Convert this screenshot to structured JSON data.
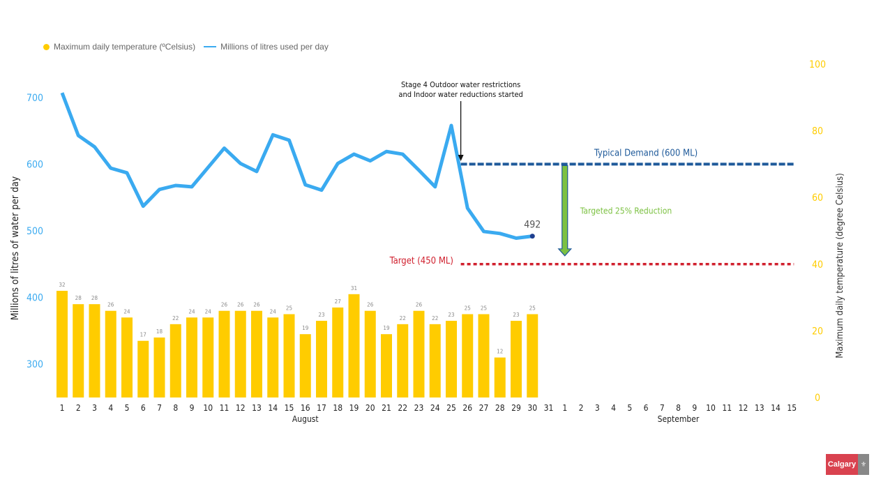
{
  "chart_data": {
    "type": "bar+line",
    "legend": [
      {
        "label": "Maximum daily temperature (ºCelsius)",
        "color": "#ffcc00",
        "marker": "dot"
      },
      {
        "label": "Millions of litres used per day",
        "color": "#3aaaf0",
        "marker": "line"
      }
    ],
    "legend_position": "top-left",
    "categories": [
      "1",
      "2",
      "3",
      "4",
      "5",
      "6",
      "7",
      "8",
      "9",
      "10",
      "11",
      "12",
      "13",
      "14",
      "15",
      "16",
      "17",
      "18",
      "19",
      "20",
      "21",
      "22",
      "23",
      "24",
      "25",
      "26",
      "27",
      "28",
      "29",
      "30",
      "31",
      "1",
      "2",
      "3",
      "4",
      "5",
      "6",
      "7",
      "8",
      "9",
      "10",
      "11",
      "12",
      "13",
      "14",
      "15"
    ],
    "month_labels": [
      {
        "label": "August",
        "center_index": 15
      },
      {
        "label": "September",
        "center_index": 38
      }
    ],
    "temperature": {
      "axis": "right",
      "color": "#ffcc00",
      "values": [
        32,
        28,
        28,
        26,
        24,
        17,
        18,
        22,
        24,
        24,
        26,
        26,
        26,
        24,
        25,
        19,
        23,
        27,
        31,
        26,
        19,
        22,
        26,
        22,
        23,
        25,
        25,
        12,
        23,
        25
      ]
    },
    "water_use": {
      "axis": "left",
      "color": "#3aaaf0",
      "values": [
        707,
        643,
        626,
        594,
        587,
        537,
        562,
        568,
        566,
        595,
        624,
        601,
        589,
        644,
        636,
        569,
        561,
        601,
        615,
        605,
        619,
        615,
        591,
        566,
        658,
        534,
        499,
        496,
        489,
        492
      ],
      "last_label": "492"
    },
    "left_axis": {
      "label": "Millions of litres of water per day",
      "ticks": [
        300,
        400,
        500,
        600,
        700
      ],
      "range": [
        250,
        750
      ],
      "color": "#3aaaf0"
    },
    "right_axis": {
      "label": "Maximum daily temperature (degree Celsius)",
      "ticks": [
        0,
        20,
        40,
        60,
        80,
        100
      ],
      "range": [
        0,
        100
      ],
      "color": "#ffcc00"
    },
    "annotations": {
      "restriction": {
        "text_line1": "Stage 4 Outdoor water restrictions",
        "text_line2": "and Indoor water reductions started",
        "at_index": 24.5
      },
      "typical_demand": {
        "text": "Typical Demand (600 ML)",
        "value": 600,
        "color": "#1f5a9a"
      },
      "target": {
        "text": "Target (450 ML)",
        "value": 450,
        "color": "#d0202e"
      },
      "reduction": {
        "text": "Targeted 25% Reduction",
        "color": "#7cc142",
        "at_index": 31
      }
    },
    "grid": false
  },
  "logo": {
    "text": "Calgary"
  }
}
